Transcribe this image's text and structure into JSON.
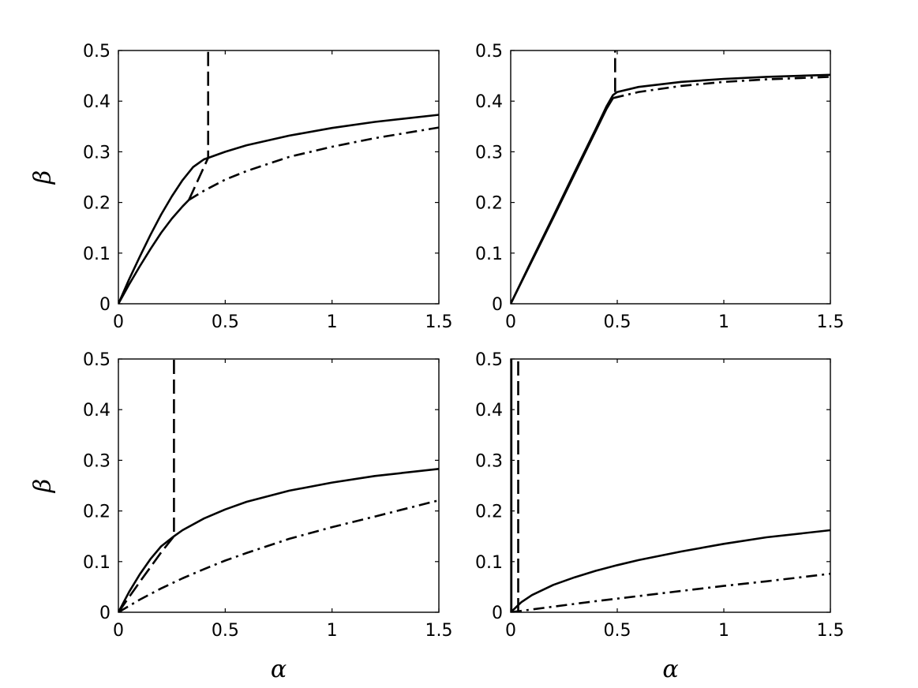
{
  "chart_data": [
    {
      "type": "line",
      "title": "",
      "xlabel": "",
      "ylabel": "β",
      "xlim": [
        0,
        1.5
      ],
      "ylim": [
        0,
        0.5
      ],
      "xticks": [
        "0",
        "0.5",
        "1",
        "1.5"
      ],
      "yticks": [
        "0",
        "0.1",
        "0.2",
        "0.3",
        "0.4",
        "0.5"
      ],
      "series": [
        {
          "style": "solid",
          "x": [
            0,
            0.05,
            0.1,
            0.15,
            0.2,
            0.25,
            0.3,
            0.35,
            0.4,
            0.42,
            0.5,
            0.6,
            0.8,
            1.0,
            1.2,
            1.5
          ],
          "y": [
            0,
            0.048,
            0.093,
            0.136,
            0.176,
            0.212,
            0.244,
            0.27,
            0.285,
            0.288,
            0.3,
            0.313,
            0.332,
            0.347,
            0.359,
            0.373
          ]
        },
        {
          "style": "solid",
          "x": [
            0,
            0.05,
            0.1,
            0.15,
            0.2,
            0.25,
            0.3,
            0.33
          ],
          "y": [
            0,
            0.038,
            0.074,
            0.108,
            0.14,
            0.168,
            0.192,
            0.205
          ]
        },
        {
          "style": "dash-dot",
          "x": [
            0.33,
            0.4,
            0.5,
            0.6,
            0.8,
            1.0,
            1.2,
            1.5
          ],
          "y": [
            0.205,
            0.223,
            0.245,
            0.262,
            0.29,
            0.31,
            0.327,
            0.348
          ]
        },
        {
          "style": "dashed",
          "x": [
            0.33,
            0.42,
            0.42
          ],
          "y": [
            0.205,
            0.288,
            0.5
          ]
        }
      ]
    },
    {
      "type": "line",
      "title": "",
      "xlabel": "",
      "ylabel": "",
      "xlim": [
        0,
        1.5
      ],
      "ylim": [
        0,
        0.5
      ],
      "xticks": [
        "0",
        "0.5",
        "1",
        "1.5"
      ],
      "yticks": [
        "0",
        "0.1",
        "0.2",
        "0.3",
        "0.4",
        "0.5"
      ],
      "series": [
        {
          "style": "solid",
          "x": [
            0,
            0.1,
            0.2,
            0.3,
            0.4,
            0.45,
            0.48,
            0.5,
            0.6,
            0.8,
            1.0,
            1.2,
            1.5
          ],
          "y": [
            0,
            0.087,
            0.173,
            0.26,
            0.346,
            0.39,
            0.412,
            0.418,
            0.428,
            0.438,
            0.444,
            0.448,
            0.452
          ]
        },
        {
          "style": "solid",
          "x": [
            0,
            0.1,
            0.2,
            0.3,
            0.4,
            0.45,
            0.48
          ],
          "y": [
            0,
            0.085,
            0.17,
            0.256,
            0.342,
            0.385,
            0.406
          ]
        },
        {
          "style": "dash-dot",
          "x": [
            0.48,
            0.6,
            0.8,
            1.0,
            1.2,
            1.5
          ],
          "y": [
            0.406,
            0.418,
            0.43,
            0.438,
            0.443,
            0.448
          ]
        },
        {
          "style": "dashed",
          "x": [
            0.49,
            0.49
          ],
          "y": [
            0.418,
            0.5
          ]
        }
      ]
    },
    {
      "type": "line",
      "title": "",
      "xlabel": "α",
      "ylabel": "β",
      "xlim": [
        0,
        1.5
      ],
      "ylim": [
        0,
        0.5
      ],
      "xticks": [
        "0",
        "0.5",
        "1",
        "1.5"
      ],
      "yticks": [
        "0",
        "0.1",
        "0.2",
        "0.3",
        "0.4",
        "0.5"
      ],
      "series": [
        {
          "style": "solid",
          "x": [
            0,
            0.05,
            0.1,
            0.15,
            0.2,
            0.26,
            0.3,
            0.4,
            0.5,
            0.6,
            0.8,
            1.0,
            1.2,
            1.5
          ],
          "y": [
            0,
            0.04,
            0.075,
            0.105,
            0.13,
            0.15,
            0.162,
            0.185,
            0.203,
            0.218,
            0.24,
            0.256,
            0.269,
            0.283
          ]
        },
        {
          "style": "dashed",
          "x": [
            0,
            0.1,
            0.2,
            0.26,
            0.26
          ],
          "y": [
            0,
            0.06,
            0.118,
            0.15,
            0.5
          ]
        },
        {
          "style": "dash-dot",
          "x": [
            0,
            0.1,
            0.2,
            0.3,
            0.4,
            0.5,
            0.6,
            0.8,
            1.0,
            1.2,
            1.5
          ],
          "y": [
            0,
            0.025,
            0.047,
            0.067,
            0.085,
            0.102,
            0.117,
            0.145,
            0.168,
            0.189,
            0.221
          ]
        }
      ]
    },
    {
      "type": "line",
      "title": "",
      "xlabel": "α",
      "ylabel": "",
      "xlim": [
        0,
        1.5
      ],
      "ylim": [
        0,
        0.5
      ],
      "xticks": [
        "0",
        "0.5",
        "1",
        "1.5"
      ],
      "yticks": [
        "0",
        "0.1",
        "0.2",
        "0.3",
        "0.4",
        "0.5"
      ],
      "series": [
        {
          "style": "solid",
          "x": [
            0,
            0.01,
            0.02,
            0.03,
            0.05,
            0.1,
            0.2,
            0.3,
            0.4,
            0.5,
            0.6,
            0.8,
            1.0,
            1.2,
            1.5
          ],
          "y": [
            0,
            0.004,
            0.008,
            0.012,
            0.02,
            0.034,
            0.054,
            0.069,
            0.082,
            0.093,
            0.103,
            0.12,
            0.135,
            0.148,
            0.162
          ]
        },
        {
          "style": "dashed",
          "x": [
            0.035,
            0.035
          ],
          "y": [
            0.0,
            0.5
          ]
        },
        {
          "style": "solid-thin",
          "x": [
            0.005,
            0.005
          ],
          "y": [
            0.0,
            0.5
          ]
        },
        {
          "style": "dash-dot",
          "x": [
            0,
            0.2,
            0.4,
            0.6,
            0.8,
            1.0,
            1.2,
            1.5
          ],
          "y": [
            0,
            0.011,
            0.022,
            0.032,
            0.042,
            0.052,
            0.061,
            0.076
          ]
        }
      ]
    }
  ]
}
